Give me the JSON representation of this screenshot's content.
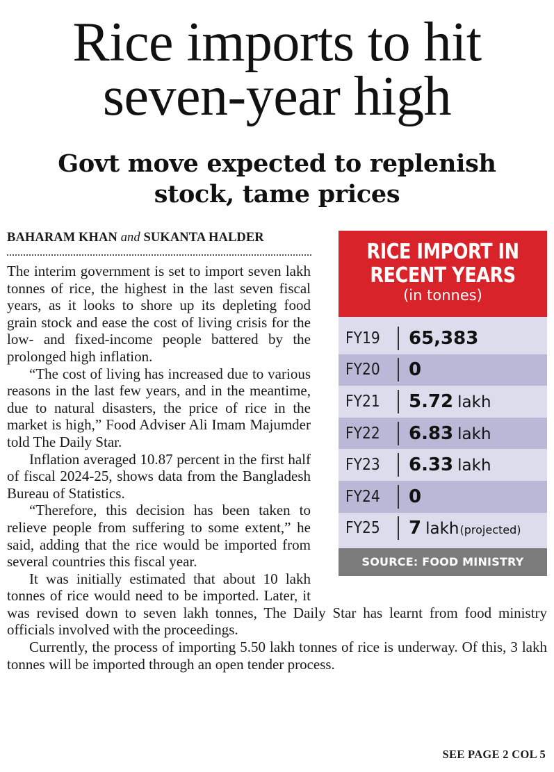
{
  "headline": {
    "line1": "Rice imports to hit",
    "line2": "seven-year high"
  },
  "subhead": {
    "line1": "Govt move expected to replenish",
    "line2": "stock, tame prices"
  },
  "byline": {
    "author1": "BAHARAM KHAN",
    "conjunction": "and",
    "author2": "SUKANTA HALDER"
  },
  "paragraphs": [
    "The interim government is set to import seven lakh tonnes of rice, the highest in the last seven fiscal years, as it looks to shore up its depleting food grain stock and ease the cost of living crisis for the low- and fixed-income people battered by the prolonged high inflation.",
    "“The cost of living has increased due to various reasons in the last few years, and in the meantime, due to natural disasters, the price of rice in the market is high,” Food Adviser Ali Imam Majumder told The Daily Star.",
    "Inflation averaged 10.87 percent in the first half of fiscal 2024-25, shows data from the Bangladesh Bureau of Statistics.",
    "“Therefore, this decision has been taken to relieve people from suffering to some extent,” he said, adding that the rice would be imported from several countries this fiscal year.",
    "It was initially estimated that about 10 lakh tonnes of rice would need to be imported. Later, it was revised down to seven lakh tonnes, The Daily Star has learnt from food ministry officials involved with the proceedings.",
    "Currently, the process of importing 5.50 lakh tonnes of rice is underway. Of this, 3 lakh tonnes will be imported through an open tender process."
  ],
  "continuation": "SEE PAGE 2 COL 5",
  "infobox": {
    "title_line1": "RICE IMPORT IN",
    "title_line2": "RECENT YEARS",
    "unit": "(in tonnes)",
    "rows": [
      {
        "year": "FY19",
        "value": "65,383",
        "unit": "",
        "note": ""
      },
      {
        "year": "FY20",
        "value": "0",
        "unit": "",
        "note": ""
      },
      {
        "year": "FY21",
        "value": "5.72",
        "unit": "lakh",
        "note": ""
      },
      {
        "year": "FY22",
        "value": "6.83",
        "unit": "lakh",
        "note": ""
      },
      {
        "year": "FY23",
        "value": "6.33",
        "unit": "lakh",
        "note": ""
      },
      {
        "year": "FY24",
        "value": "0",
        "unit": "",
        "note": ""
      },
      {
        "year": "FY25",
        "value": "7",
        "unit": "lakh",
        "note": "(projected)"
      }
    ],
    "source": "SOURCE: FOOD MINISTRY"
  },
  "colors": {
    "box_header": "#d8232a",
    "row_light": "#dcdcec",
    "row_dark": "#b9b9d7",
    "source_bar": "#7b7b7b"
  }
}
